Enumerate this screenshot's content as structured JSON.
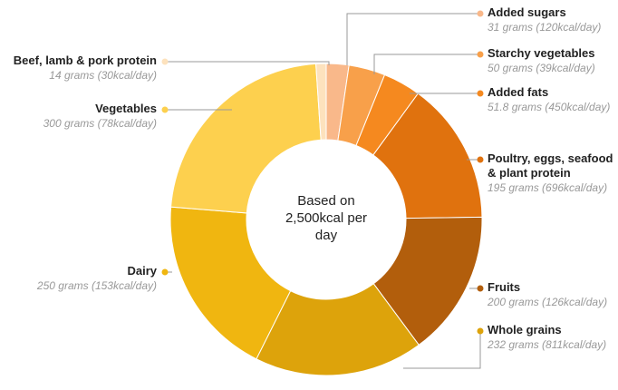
{
  "chart_data": {
    "type": "donut",
    "center_text": "Based on 2,500kcal per day",
    "categories": [
      "Added sugars",
      "Starchy vegetables",
      "Added fats",
      "Poultry, eggs, seafood & plant protein",
      "Fruits",
      "Whole grains",
      "Dairy",
      "Vegetables",
      "Beef, lamb & pork protein"
    ],
    "values": [
      31,
      50,
      51.8,
      195,
      200,
      232,
      250,
      300,
      14
    ],
    "value_labels": [
      "31 grams (120kcal/day)",
      "50 grams (39kcal/day)",
      "51.8 grams (450kcal/day)",
      "195 grams (696kcal/day)",
      "200 grams (126kcal/day)",
      "232 grams (811kcal/day)",
      "250 grams (153kcal/day)",
      "300 grams (78kcal/day)",
      "14 grams (30kcal/day)"
    ],
    "colors": [
      "#f9b88a",
      "#f8a04a",
      "#f5891f",
      "#e0720e",
      "#b25e0c",
      "#dda30b",
      "#f0b610",
      "#fdd04e",
      "#fde2bd"
    ]
  }
}
